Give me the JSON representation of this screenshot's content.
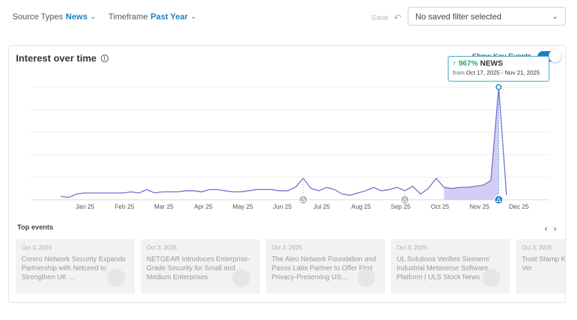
{
  "filters": {
    "source_types": {
      "label": "Source Types",
      "value": "News"
    },
    "timeframe": {
      "label": "Timeframe",
      "value": "Past Year"
    }
  },
  "save_label": "Save",
  "saved_filter": {
    "value": "No saved filter selected"
  },
  "panel": {
    "title": "Interest over time",
    "key_events_label": "Show Key Events",
    "tooltip": {
      "percent": "967%",
      "source": "NEWS",
      "range_prefix": "from",
      "range": "Oct 17, 2025 - Nov 21, 2025"
    }
  },
  "chart_data": {
    "type": "area",
    "x_labels": [
      "Jan 25",
      "Feb 25",
      "Mar 25",
      "Apr 25",
      "May 25",
      "Jun 25",
      "Jul 25",
      "Aug 25",
      "Sep 25",
      "Oct 25",
      "Nov 25",
      "Dec 25"
    ],
    "y": [
      3,
      2,
      5,
      6,
      6,
      6,
      6,
      6,
      6,
      7,
      6,
      9,
      6,
      7,
      7,
      7,
      8,
      8,
      7,
      9,
      9,
      8,
      7,
      7,
      8,
      9,
      9,
      9,
      8,
      8,
      11,
      19,
      10,
      8,
      11,
      9,
      5,
      4,
      6,
      8,
      11,
      8,
      9,
      11,
      8,
      12,
      5,
      10,
      19,
      11,
      10,
      11,
      11,
      12,
      13,
      17,
      100,
      4
    ],
    "highlight_range_index": [
      49,
      56
    ],
    "peak_index": 56,
    "event_marker_indices": [
      31,
      44,
      56
    ],
    "grid": true
  },
  "top_events": {
    "label": "Top events",
    "items": [
      {
        "date": "Oct 3, 2025",
        "headline": "Corero Network Security Expands Partnership with Netceed to Strengthen UK …"
      },
      {
        "date": "Oct 3, 2025",
        "headline": "NETGEAR Introduces Enterprise-Grade Security for Small and Medium Enterprises"
      },
      {
        "date": "Oct 3, 2025",
        "headline": "The Aleo Network Foundation and Paxos Labs Partner to Offer First Privacy-Preserving US…"
      },
      {
        "date": "Oct 3, 2025",
        "headline": "UL Solutions Verifies Siemens' Industrial Metaverse Software Platform | ULS Stock News"
      },
      {
        "date": "Oct 3, 2025",
        "headline": "Trust Stamp Knowledge Identity Ver"
      }
    ]
  },
  "colors": {
    "accent": "#1b7fc4",
    "line": "#7b6fd1",
    "fill": "#c9c0f2",
    "tooltip_border": "#3aa3c9",
    "up": "#27ae60"
  }
}
